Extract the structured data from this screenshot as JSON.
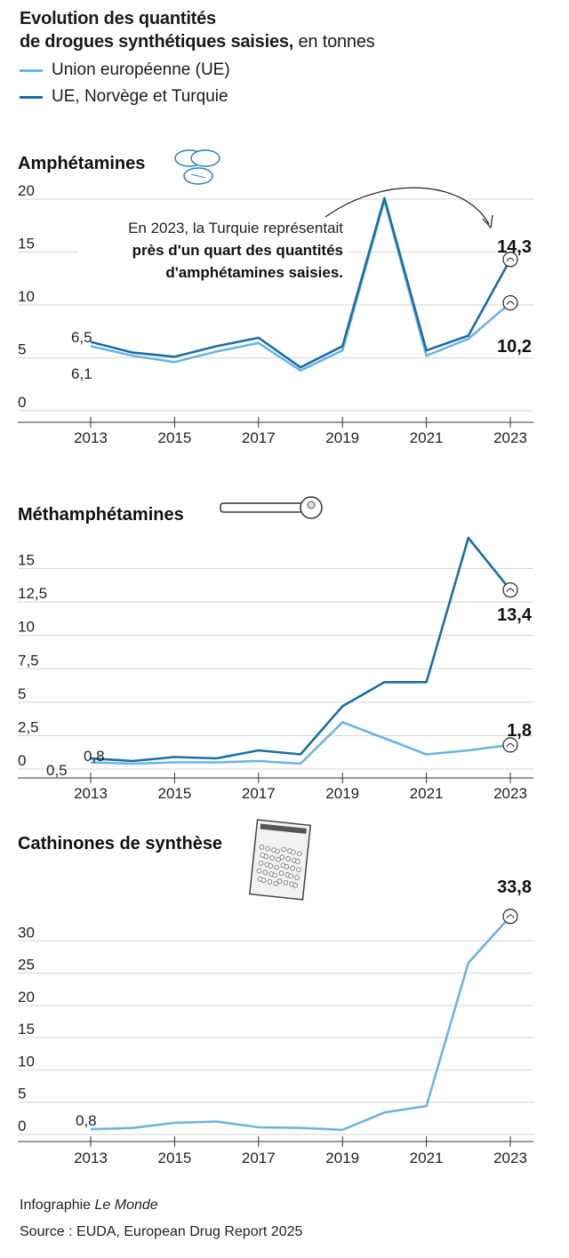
{
  "header": {
    "title_line1": "Evolution des quantités",
    "title_line2_bold": "de drogues synthétiques saisies,",
    "title_line2_rest": " en tonnes"
  },
  "legend": [
    {
      "label": "Union européenne (UE)",
      "color": "#6cb4e4"
    },
    {
      "label": "UE, Norvège et Turquie",
      "color": "#1a6ea3"
    }
  ],
  "colors": {
    "eu": "#6cb4e4",
    "eu_plus": "#1a6ea3",
    "grid": "#d6d6d6",
    "axis": "#333333"
  },
  "chart_data": [
    {
      "type": "line",
      "title": "Amphétamines",
      "icon": "pills-icon",
      "x": [
        2013,
        2014,
        2015,
        2016,
        2017,
        2018,
        2019,
        2020,
        2021,
        2022,
        2023
      ],
      "xticks": [
        "2013",
        "2015",
        "2017",
        "2019",
        "2021",
        "2023"
      ],
      "yticks": [
        "0",
        "5",
        "10",
        "15",
        "20"
      ],
      "ylim": [
        0,
        20
      ],
      "series": [
        {
          "name": "UE, Norvège et Turquie",
          "values": [
            6.5,
            5.5,
            5.1,
            6.1,
            6.9,
            4.1,
            6.1,
            20.1,
            5.7,
            7.1,
            14.3
          ]
        },
        {
          "name": "Union européenne (UE)",
          "values": [
            6.1,
            5.2,
            4.6,
            5.6,
            6.4,
            3.8,
            5.7,
            19.9,
            5.2,
            6.8,
            10.2
          ]
        }
      ],
      "start_labels": [
        "6,5",
        "6,1"
      ],
      "end_labels": [
        "14,3",
        "10,2"
      ],
      "annotation": {
        "line1": "En 2023, la Turquie représentait",
        "line2": "près d'un quart des quantités",
        "line3": "d'amphétamines saisies."
      }
    },
    {
      "type": "line",
      "title": "Méthamphétamines",
      "icon": "pipe-icon",
      "x": [
        2013,
        2014,
        2015,
        2016,
        2017,
        2018,
        2019,
        2020,
        2021,
        2022,
        2023
      ],
      "xticks": [
        "2013",
        "2015",
        "2017",
        "2019",
        "2021",
        "2023"
      ],
      "yticks": [
        "0",
        "2,5",
        "5",
        "7,5",
        "10",
        "12,5",
        "15"
      ],
      "ylim": [
        0,
        16.5
      ],
      "series": [
        {
          "name": "UE, Norvège et Turquie",
          "values": [
            0.8,
            0.6,
            0.9,
            0.8,
            1.4,
            1.1,
            4.7,
            6.5,
            6.5,
            17.3,
            13.4
          ]
        },
        {
          "name": "Union européenne (UE)",
          "values": [
            0.5,
            0.4,
            0.5,
            0.5,
            0.6,
            0.4,
            3.5,
            2.3,
            1.1,
            1.4,
            1.8
          ]
        }
      ],
      "start_labels": [
        "0,8",
        "0,5"
      ],
      "end_labels": [
        "13,4",
        "1,8"
      ]
    },
    {
      "type": "line",
      "title": "Cathinones de synthèse",
      "icon": "powder-bag-icon",
      "x": [
        2013,
        2014,
        2015,
        2016,
        2017,
        2018,
        2019,
        2020,
        2021,
        2022,
        2023
      ],
      "xticks": [
        "2013",
        "2015",
        "2017",
        "2019",
        "2021",
        "2023"
      ],
      "yticks": [
        "0",
        "5",
        "10",
        "15",
        "20",
        "25",
        "30"
      ],
      "ylim": [
        0,
        35
      ],
      "series": [
        {
          "name": "Union européenne (UE)",
          "values": [
            0.8,
            1.0,
            1.8,
            2.0,
            1.1,
            1.0,
            0.7,
            3.4,
            4.4,
            26.6,
            33.8
          ]
        }
      ],
      "start_labels": [
        "0,8"
      ],
      "end_labels": [
        "33,8"
      ]
    }
  ],
  "footer": {
    "credit_prefix": "Infographie ",
    "credit_brand": "Le Monde",
    "source": "Source : EUDA, European Drug Report 2025"
  }
}
